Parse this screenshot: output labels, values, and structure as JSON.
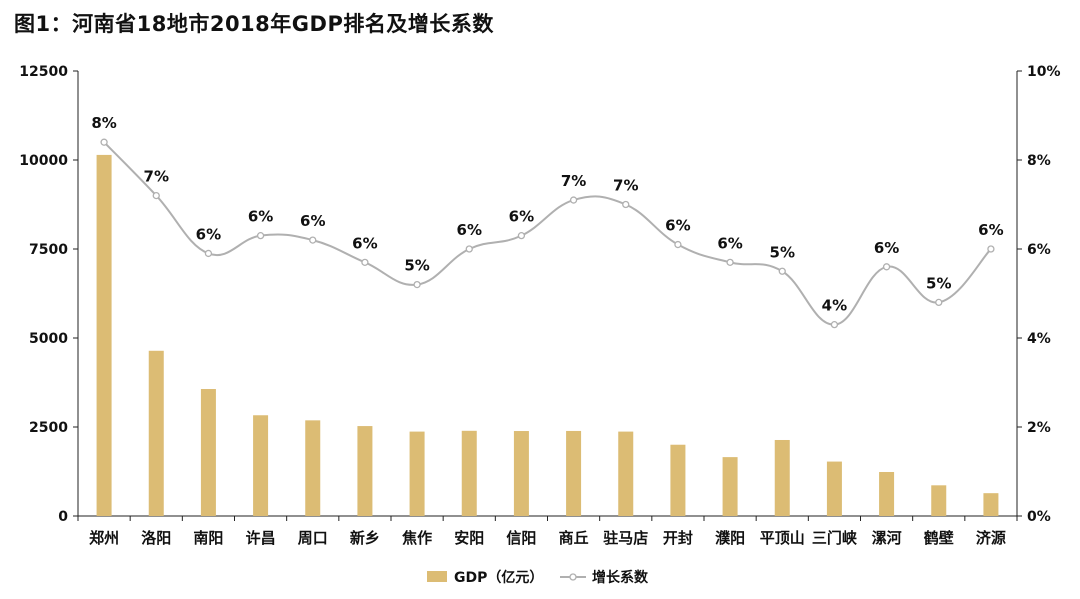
{
  "title": "图1：河南省18地市2018年GDP排名及增长系数",
  "chart_data": {
    "type": "bar",
    "title": "图1：河南省18地市2018年GDP排名及增长系数",
    "categories": [
      "郑州",
      "洛阳",
      "南阳",
      "许昌",
      "周口",
      "新乡",
      "焦作",
      "安阳",
      "信阳",
      "商丘",
      "驻马店",
      "开封",
      "濮阳",
      "平顶山",
      "三门峡",
      "漯河",
      "鹤壁",
      "济源"
    ],
    "series": [
      {
        "name": "GDP（亿元）",
        "type": "bar",
        "axis": "left",
        "values": [
          10143,
          4641,
          3567,
          2830,
          2687,
          2526,
          2371,
          2393,
          2387,
          2389,
          2371,
          2002,
          1654,
          2135,
          1529,
          1236,
          862,
          641
        ]
      },
      {
        "name": "增长系数",
        "type": "line",
        "axis": "right",
        "values": [
          8.4,
          7.2,
          5.9,
          6.3,
          6.2,
          5.7,
          5.2,
          6.0,
          6.3,
          7.1,
          7.0,
          6.1,
          5.7,
          5.5,
          4.3,
          5.6,
          4.8,
          6.0
        ],
        "labels": [
          "8%",
          "7%",
          "6%",
          "6%",
          "6%",
          "6%",
          "5%",
          "6%",
          "6%",
          "7%",
          "7%",
          "6%",
          "6%",
          "5%",
          "4%",
          "6%",
          "5%",
          "6%"
        ]
      }
    ],
    "y_left": {
      "ylim": [
        0,
        12500
      ],
      "ticks": [
        "0",
        "2500",
        "5000",
        "7500",
        "10000",
        "12500"
      ]
    },
    "y_right": {
      "ylim": [
        0,
        10
      ],
      "ticks": [
        "0%",
        "2%",
        "4%",
        "6%",
        "8%",
        "10%"
      ]
    },
    "grid": false,
    "legend": "bottom",
    "colors": {
      "bar": "#dcbc74",
      "line": "#b0b0b0",
      "axis": "#222222"
    }
  }
}
